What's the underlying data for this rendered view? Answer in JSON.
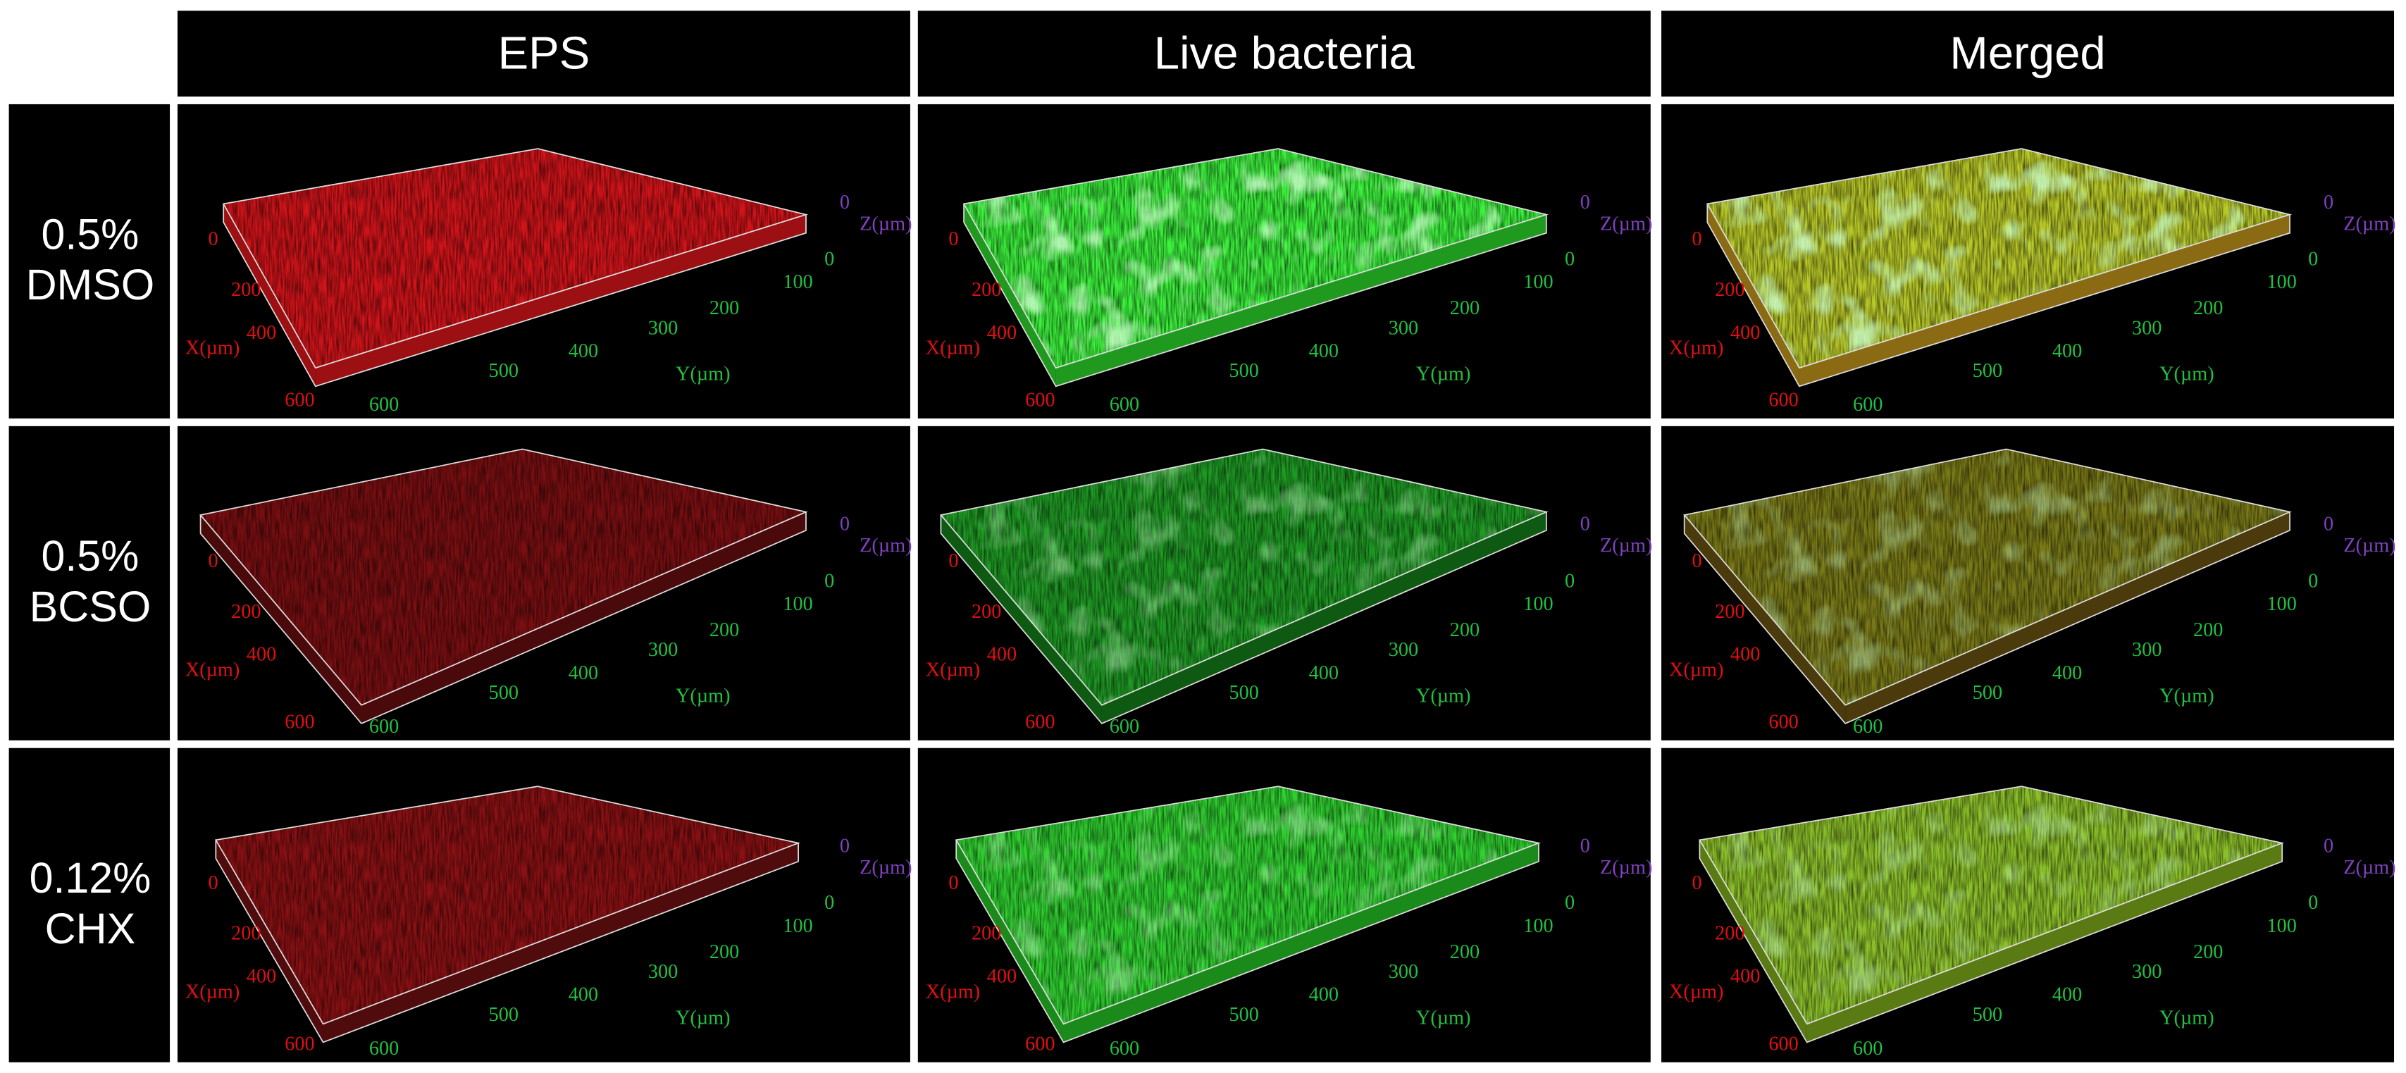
{
  "column_headers": [
    "EPS",
    "Live bacteria",
    "Merged"
  ],
  "row_labels": [
    {
      "concentration": "0.5%",
      "treatment": "DMSO"
    },
    {
      "concentration": "0.5%",
      "treatment": "BCSO"
    },
    {
      "concentration": "0.12%",
      "treatment": "CHX"
    }
  ],
  "axes": {
    "x_label": "X(µm)",
    "x_ticks": [
      "0",
      "200",
      "400",
      "600"
    ],
    "y_label": "Y(µm)",
    "y_origin": "0",
    "y_ticks": [
      "100",
      "200",
      "300",
      "400",
      "500",
      "600"
    ],
    "z_label": "Z(µm)",
    "z_ticks": [
      "0"
    ]
  }
}
